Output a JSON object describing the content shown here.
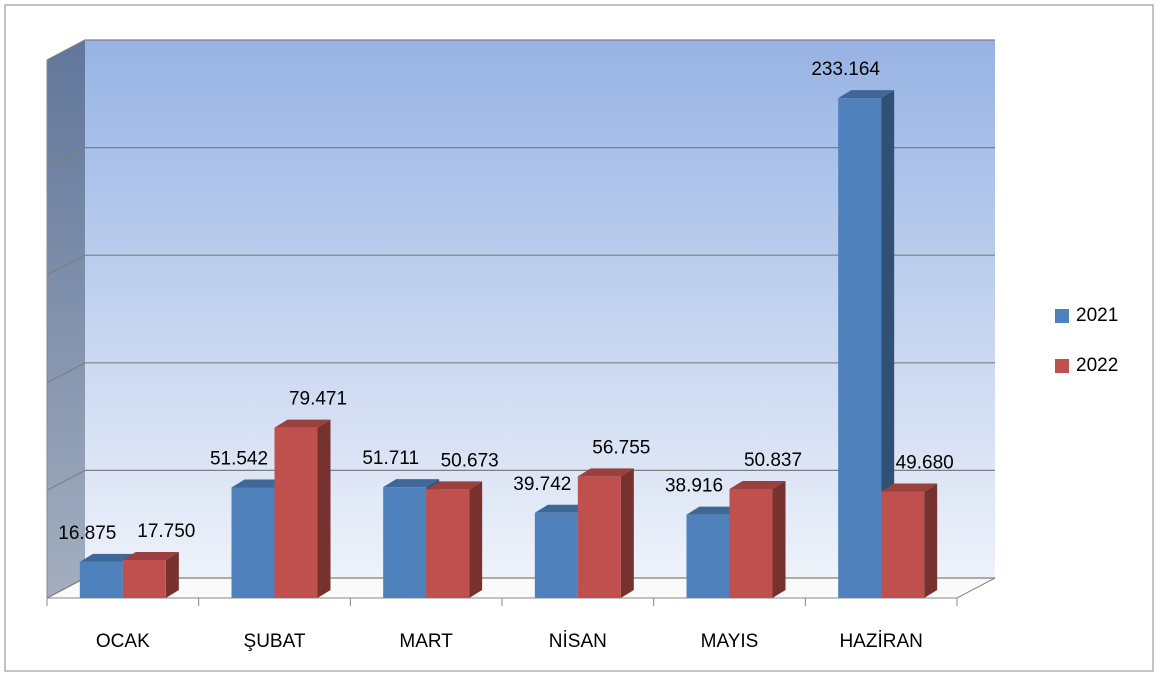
{
  "chart_data": {
    "type": "bar3d",
    "categories": [
      "OCAK",
      "ŞUBAT",
      "MART",
      "NİSAN",
      "MAYIS",
      "HAZİRAN"
    ],
    "series": [
      {
        "name": "2021",
        "color": "#4f81bd",
        "values": [
          16875,
          51542,
          51711,
          39742,
          38916,
          233164
        ],
        "value_labels": [
          "16.875",
          "51.542",
          "51.711",
          "39.742",
          "38.916",
          "233.164"
        ]
      },
      {
        "name": "2022",
        "color": "#c0504d",
        "values": [
          17750,
          79471,
          50673,
          56755,
          50837,
          49680
        ],
        "value_labels": [
          "17.750",
          "79.471",
          "50.673",
          "56.755",
          "50.837",
          "49.680"
        ]
      }
    ],
    "ylim": [
      0,
      250000
    ],
    "yticks": [
      0,
      50000,
      100000,
      150000,
      200000,
      250000
    ],
    "grid": true,
    "legend": "right"
  }
}
